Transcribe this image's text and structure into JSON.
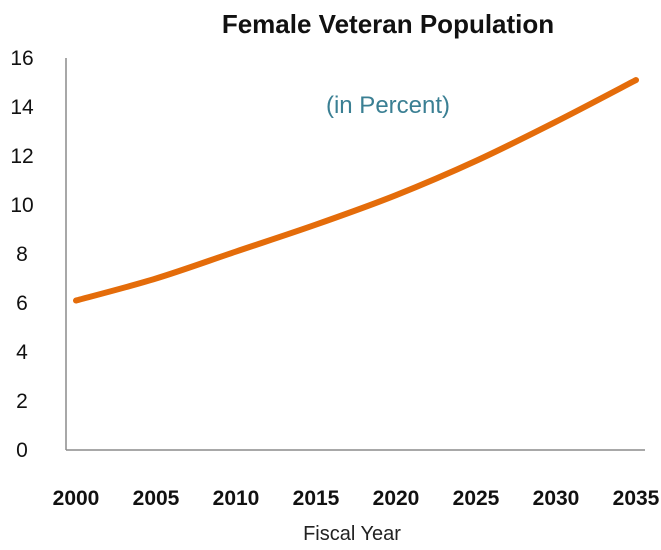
{
  "chart_data": {
    "type": "line",
    "title": "Female Veteran Population",
    "annotation": "(in Percent)",
    "xlabel": "Fiscal Year",
    "ylabel": "",
    "x": [
      2000,
      2005,
      2010,
      2015,
      2020,
      2025,
      2030,
      2035
    ],
    "x_tick_labels": [
      "2000",
      "2005",
      "2010",
      "2015",
      "2020",
      "2025",
      "2030",
      "2035"
    ],
    "y_ticks": [
      0,
      2,
      4,
      6,
      8,
      10,
      12,
      14,
      16
    ],
    "y_tick_labels": [
      "0",
      "2",
      "4",
      "6",
      "8",
      "10",
      "12",
      "14",
      "16"
    ],
    "xlim": [
      2000,
      2035
    ],
    "ylim": [
      0,
      16
    ],
    "grid": false,
    "series": [
      {
        "values": [
          6.1,
          7.0,
          8.1,
          9.2,
          10.4,
          11.8,
          13.4,
          15.1
        ],
        "color": "#E46C0A"
      }
    ]
  }
}
